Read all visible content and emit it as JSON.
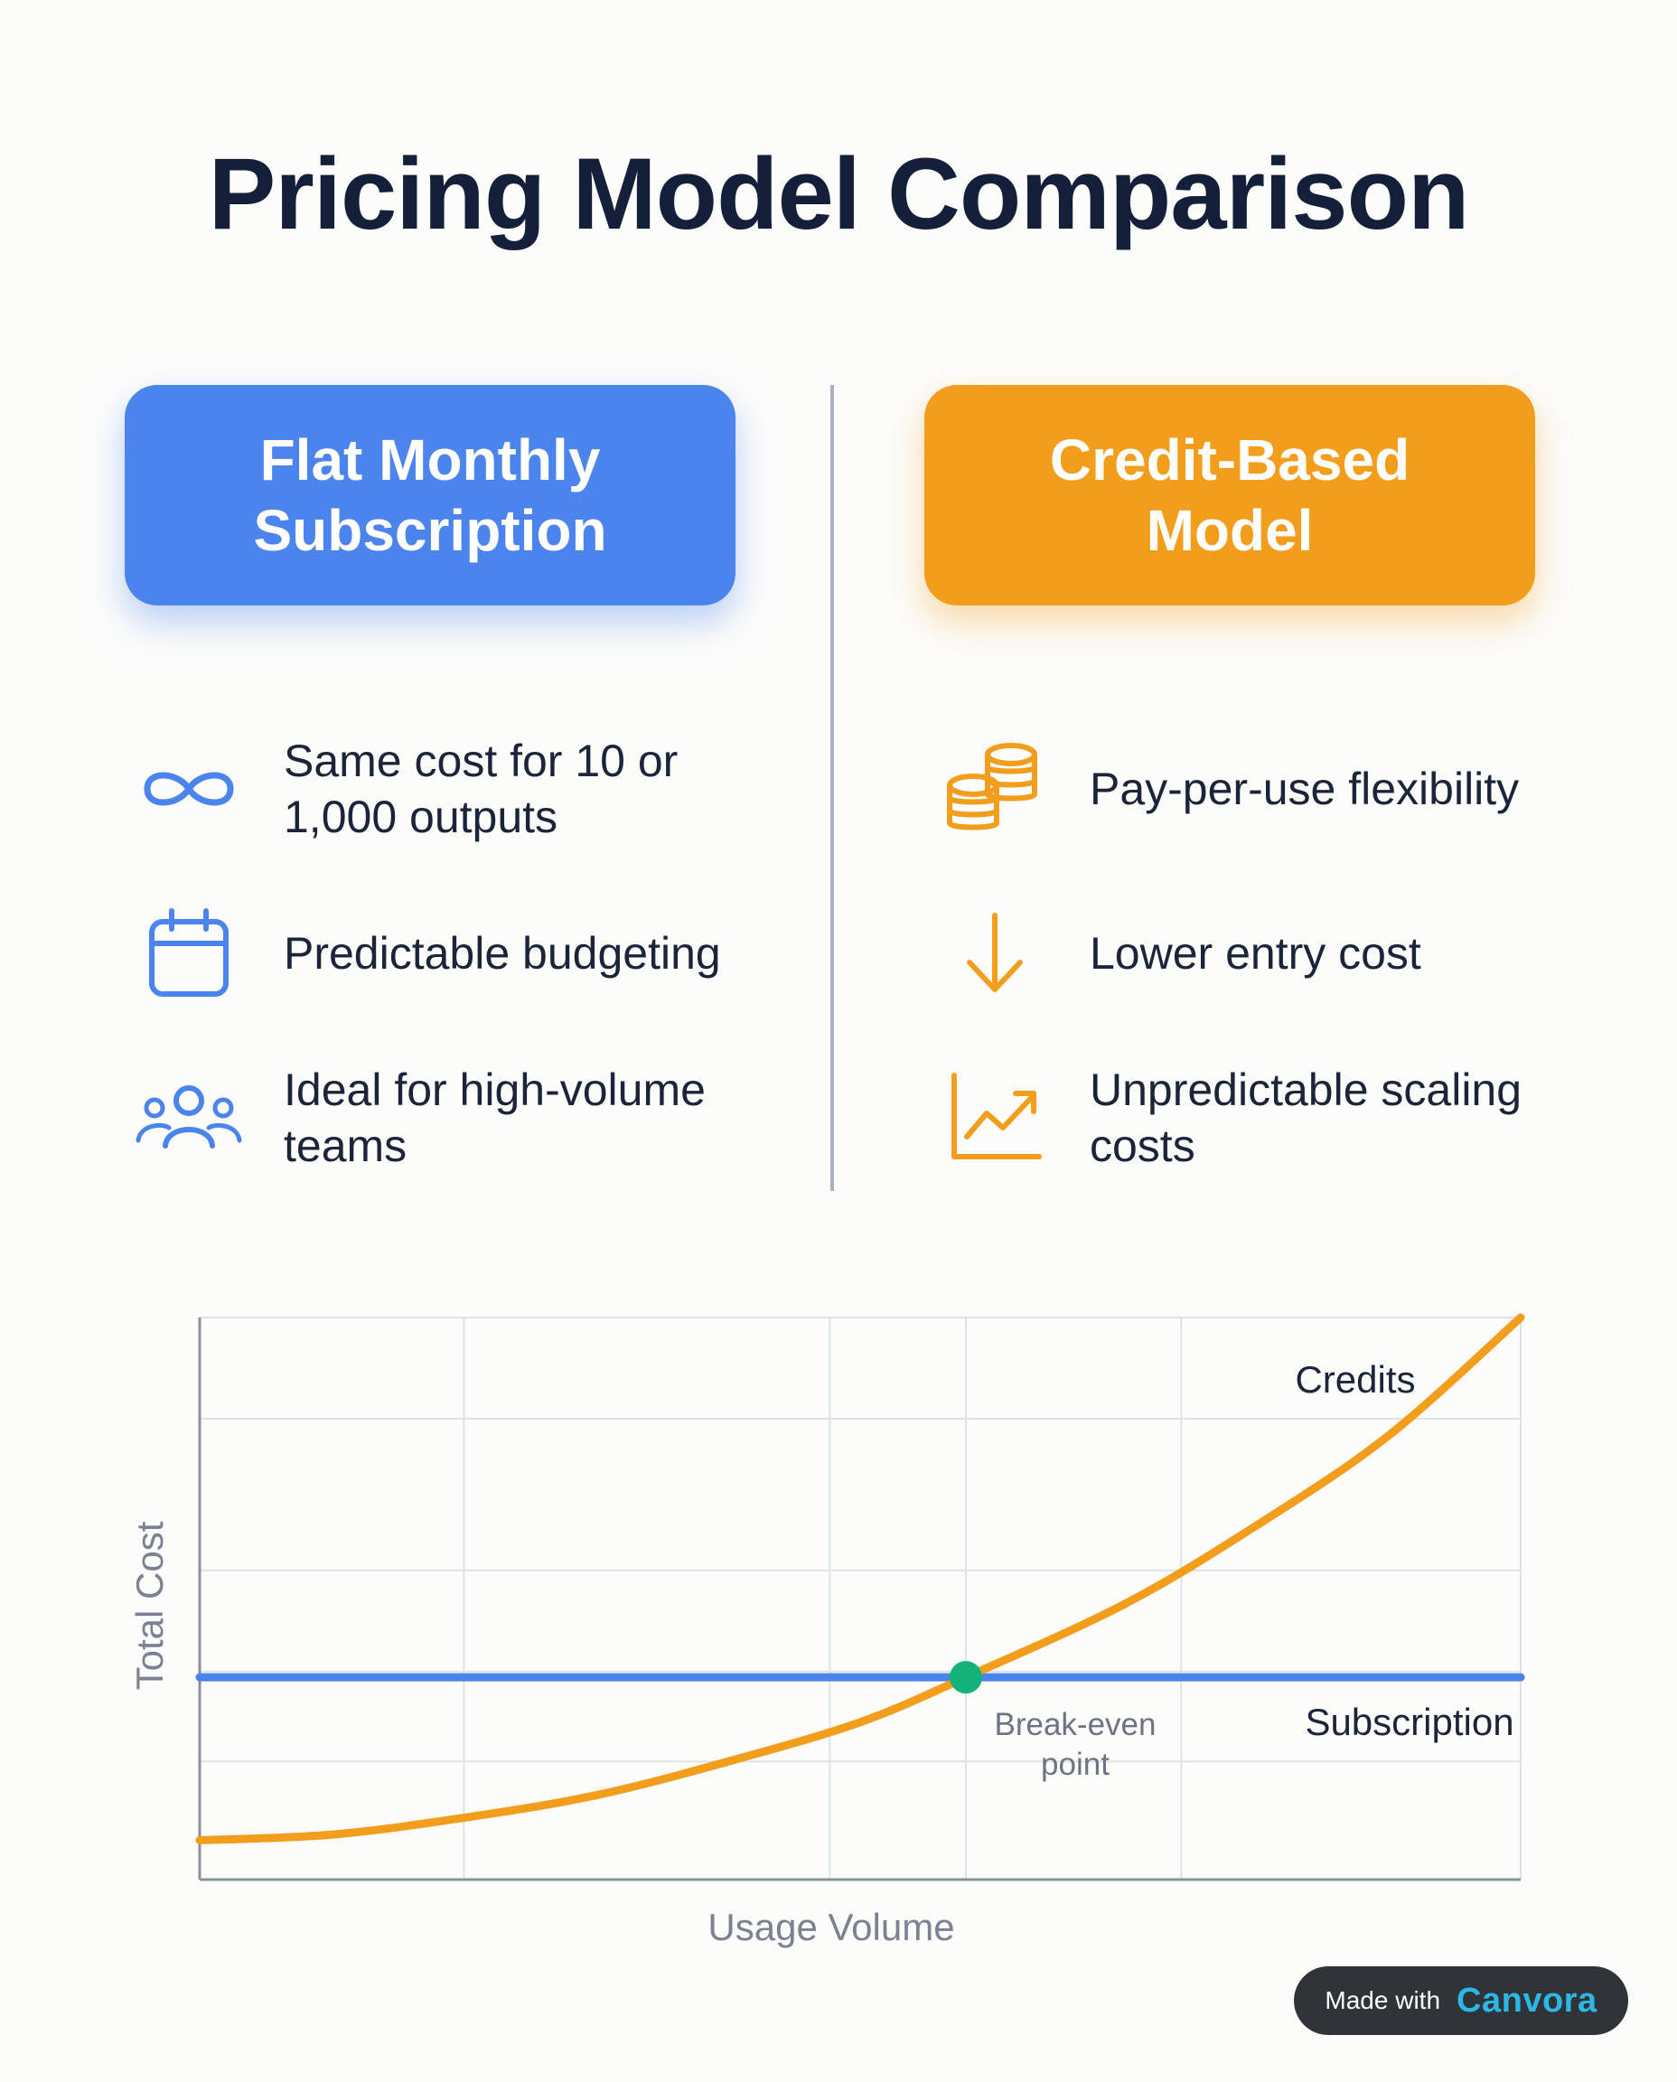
{
  "title": "Pricing Model Comparison",
  "columns": {
    "left": {
      "heading_line1": "Flat Monthly",
      "heading_line2": "Subscription",
      "color": "#4a84ec",
      "features": [
        {
          "icon": "infinity-icon",
          "text": "Same cost for 10 or 1,000 outputs"
        },
        {
          "icon": "calendar-icon",
          "text": "Predictable budgeting"
        },
        {
          "icon": "team-icon",
          "text": "Ideal for high-volume teams"
        }
      ]
    },
    "right": {
      "heading_line1": "Credit-Based",
      "heading_line2": "Model",
      "color": "#f39d1d",
      "features": [
        {
          "icon": "coins-icon",
          "text": "Pay-per-use flexibility"
        },
        {
          "icon": "arrow-down-icon",
          "text": "Lower entry cost"
        },
        {
          "icon": "trend-up-icon",
          "text": "Unpredictable scaling costs"
        }
      ]
    }
  },
  "chart_data": {
    "type": "line",
    "xlabel": "Usage Volume",
    "ylabel": "Total Cost",
    "x_range": [
      0,
      1
    ],
    "y_range": [
      0,
      1
    ],
    "grid": true,
    "series": [
      {
        "name": "Subscription",
        "color": "#4a84ec",
        "x": [
          0,
          1
        ],
        "y": [
          0.36,
          0.36
        ]
      },
      {
        "name": "Credits",
        "color": "#f39d1d",
        "x": [
          0,
          0.1,
          0.2,
          0.3,
          0.4,
          0.5,
          0.58,
          0.7,
          0.8,
          0.9,
          1.0
        ],
        "y": [
          0.07,
          0.08,
          0.11,
          0.15,
          0.21,
          0.28,
          0.36,
          0.49,
          0.63,
          0.79,
          1.0
        ]
      }
    ],
    "annotations": [
      {
        "label_line1": "Break-even",
        "label_line2": "point",
        "x": 0.58,
        "y": 0.36,
        "marker_color": "#13b27a"
      }
    ]
  },
  "badge": {
    "made_with": "Made with",
    "brand": "Canvora"
  }
}
